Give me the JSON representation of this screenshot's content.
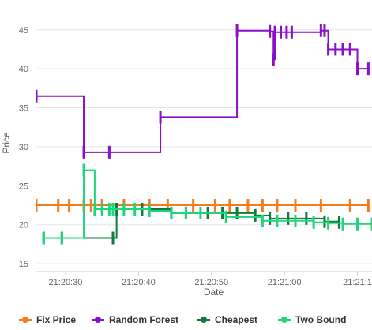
{
  "chart_data": {
    "type": "line",
    "xlabel": "Date",
    "ylabel": "Price",
    "ylim": [
      14,
      47
    ],
    "xlim": [
      "21:20:26",
      "21:21:12"
    ],
    "x_ticks": [
      "21:20:30",
      "21:20:40",
      "21:20:50",
      "21:21:00",
      "21:21:1"
    ],
    "y_ticks": [
      15,
      20,
      25,
      30,
      35,
      40,
      45
    ],
    "grid": "horizontal",
    "legend_position": "bottom",
    "step": true,
    "series": [
      {
        "name": "Fix Price",
        "color": "#f47c20",
        "marker": "vertical-bar",
        "points": [
          [
            "21:20:26.0",
            22.5
          ],
          [
            "21:20:29.0",
            22.5
          ],
          [
            "21:20:30.5",
            22.5
          ],
          [
            "21:20:32.5",
            22.5
          ],
          [
            "21:20:33.5",
            22.5
          ],
          [
            "21:20:35.0",
            22.5
          ],
          [
            "21:20:38.0",
            22.5
          ],
          [
            "21:20:41.5",
            22.5
          ],
          [
            "21:20:44.0",
            22.5
          ],
          [
            "21:20:47.5",
            22.5
          ],
          [
            "21:20:50.5",
            22.5
          ],
          [
            "21:20:52.5",
            22.5
          ],
          [
            "21:20:55.0",
            22.5
          ],
          [
            "21:20:57.0",
            22.5
          ],
          [
            "21:20:59.0",
            22.5
          ],
          [
            "21:21:01.5",
            22.5
          ],
          [
            "21:21:05.0",
            22.5
          ],
          [
            "21:21:09.0",
            22.5
          ],
          [
            "21:21:11.5",
            22.5
          ]
        ]
      },
      {
        "name": "Random Forest",
        "color": "#8a0fc8",
        "marker": "vertical-bar",
        "points": [
          [
            "21:20:26.0",
            36.5
          ],
          [
            "21:20:32.5",
            29.3
          ],
          [
            "21:20:36.0",
            29.3
          ],
          [
            "21:20:43.0",
            33.8
          ],
          [
            "21:20:53.5",
            44.9
          ],
          [
            "21:20:58.0",
            44.8
          ],
          [
            "21:20:58.5",
            41.2
          ],
          [
            "21:20:58.7",
            44.7
          ],
          [
            "21:20:59.5",
            44.7
          ],
          [
            "21:21:00.3",
            44.7
          ],
          [
            "21:21:01.0",
            44.7
          ],
          [
            "21:21:05.0",
            44.9
          ],
          [
            "21:21:05.5",
            44.9
          ],
          [
            "21:21:06.0",
            42.5
          ],
          [
            "21:21:07.0",
            42.5
          ],
          [
            "21:21:08.0",
            42.5
          ],
          [
            "21:21:09.0",
            42.5
          ],
          [
            "21:21:10.0",
            40.0
          ],
          [
            "21:21:11.5",
            40.0
          ]
        ]
      },
      {
        "name": "Cheapest",
        "color": "#0f7a3c",
        "marker": "vertical-bar",
        "points": [
          [
            "21:20:27.0",
            18.3
          ],
          [
            "21:20:29.5",
            18.3
          ],
          [
            "21:20:36.5",
            18.3
          ],
          [
            "21:20:37.0",
            22.0
          ],
          [
            "21:20:40.5",
            22.0
          ],
          [
            "21:20:44.5",
            21.5
          ],
          [
            "21:20:46.5",
            21.5
          ],
          [
            "21:20:49.5",
            21.5
          ],
          [
            "21:20:51.5",
            21.5
          ],
          [
            "21:20:53.5",
            21.5
          ],
          [
            "21:20:56.0",
            21.2
          ],
          [
            "21:20:58.0",
            20.8
          ],
          [
            "21:21:00.5",
            20.8
          ],
          [
            "21:21:03.0",
            20.8
          ],
          [
            "21:21:05.5",
            20.4
          ],
          [
            "21:21:07.5",
            20.3
          ]
        ]
      },
      {
        "name": "Two Bound",
        "color": "#1fd67a",
        "marker": "vertical-bar",
        "points": [
          [
            "21:20:27.0",
            18.3
          ],
          [
            "21:20:29.5",
            18.3
          ],
          [
            "21:20:32.5",
            27.0
          ],
          [
            "21:20:34.0",
            22.0
          ],
          [
            "21:20:35.0",
            22.0
          ],
          [
            "21:20:36.0",
            22.0
          ],
          [
            "21:20:36.5",
            22.0
          ],
          [
            "21:20:38.0",
            22.0
          ],
          [
            "21:20:39.5",
            22.0
          ],
          [
            "21:20:41.5",
            21.8
          ],
          [
            "21:20:44.5",
            21.5
          ],
          [
            "21:20:46.5",
            21.5
          ],
          [
            "21:20:48.5",
            21.5
          ],
          [
            "21:20:52.0",
            21.0
          ],
          [
            "21:20:57.0",
            20.5
          ],
          [
            "21:20:59.0",
            20.5
          ],
          [
            "21:21:01.5",
            20.5
          ],
          [
            "21:21:04.0",
            20.3
          ],
          [
            "21:21:06.0",
            20.2
          ],
          [
            "21:21:08.0",
            20.1
          ],
          [
            "21:21:10.0",
            20.1
          ],
          [
            "21:21:12.0",
            20.1
          ]
        ]
      }
    ]
  }
}
